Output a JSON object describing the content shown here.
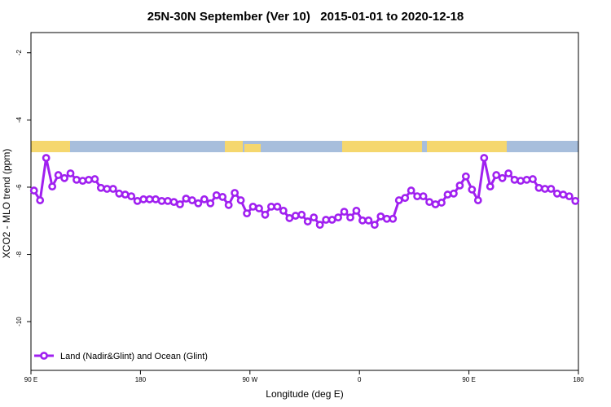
{
  "chart_data": {
    "type": "line",
    "title": "25N-30N September (Ver 10)   2015-01-01 to 2020-12-18",
    "x_label": "Longitude (deg E)",
    "y_label": "XCO2 - MLO trend (ppm)",
    "xlim": [
      90,
      540
    ],
    "xticks": [
      {
        "value": 90,
        "label": "90 E"
      },
      180,
      {
        "value": 270,
        "label": "90 W"
      },
      {
        "value": 360,
        "label": "0"
      },
      {
        "value": 450,
        "label": "90 E"
      },
      {
        "value": 540,
        "label": "180"
      }
    ],
    "ylim": [
      -11.45,
      -1.4
    ],
    "yticks": [
      -2,
      -4,
      -6,
      -8,
      -10
    ],
    "legend": "lower left",
    "x": [
      92.5,
      97.5,
      102.5,
      107.5,
      112.5,
      117.5,
      122.5,
      127.5,
      132.5,
      137.5,
      142.5,
      147.5,
      152.5,
      157.5,
      162.5,
      167.5,
      172.5,
      177.5,
      182.5,
      187.5,
      192.5,
      197.5,
      202.5,
      207.5,
      212.5,
      217.5,
      222.5,
      227.5,
      232.5,
      237.5,
      242.5,
      247.5,
      252.5,
      257.5,
      262.5,
      267.5,
      272.5,
      277.5,
      282.5,
      287.5,
      292.5,
      297.5,
      302.5,
      307.5,
      312.5,
      317.5,
      322.5,
      327.5,
      332.5,
      337.5,
      342.5,
      347.5,
      352.5,
      357.5,
      362.5,
      367.5,
      372.5,
      377.5,
      382.5,
      387.5,
      392.5,
      397.5,
      402.5,
      407.5,
      412.5,
      417.5,
      422.5,
      427.5,
      432.5,
      437.5,
      442.5,
      447.5,
      452.5,
      457.5,
      462.5,
      467.5,
      472.5,
      477.5,
      482.5,
      487.5,
      492.5,
      497.5,
      502.5,
      507.5,
      512.5,
      517.5,
      522.5,
      527.5,
      532.5,
      537.5
    ],
    "series": [
      {
        "name": "Land (Nadir&Glint) and Ocean (Glint)",
        "color": "#a020f0",
        "values": [
          -6.1,
          -6.39,
          -5.13,
          -5.98,
          -5.64,
          -5.73,
          -5.59,
          -5.78,
          -5.81,
          -5.78,
          -5.76,
          -6.02,
          -6.05,
          -6.05,
          -6.19,
          -6.22,
          -6.27,
          -6.41,
          -6.36,
          -6.36,
          -6.36,
          -6.41,
          -6.41,
          -6.44,
          -6.51,
          -6.34,
          -6.39,
          -6.48,
          -6.36,
          -6.48,
          -6.24,
          -6.29,
          -6.53,
          -6.17,
          -6.39,
          -6.78,
          -6.58,
          -6.63,
          -6.82,
          -6.58,
          -6.58,
          -6.7,
          -6.92,
          -6.85,
          -6.82,
          -7.02,
          -6.9,
          -7.12,
          -6.97,
          -6.97,
          -6.9,
          -6.73,
          -6.9,
          -6.7,
          -6.99,
          -6.99,
          -7.12,
          -6.87,
          -6.94,
          -6.94,
          -6.39,
          -6.32,
          -6.1,
          -6.27,
          -6.27,
          -6.44,
          -6.51,
          -6.46,
          -6.22,
          -6.19,
          -5.95,
          -5.68,
          -6.07,
          -6.39,
          -5.13,
          -5.98,
          -5.64,
          -5.73,
          -5.59,
          -5.78,
          -5.81,
          -5.78,
          -5.76,
          -6.02,
          -6.05,
          -6.05,
          -6.19,
          -6.22,
          -6.27,
          -6.41
        ]
      }
    ]
  }
}
